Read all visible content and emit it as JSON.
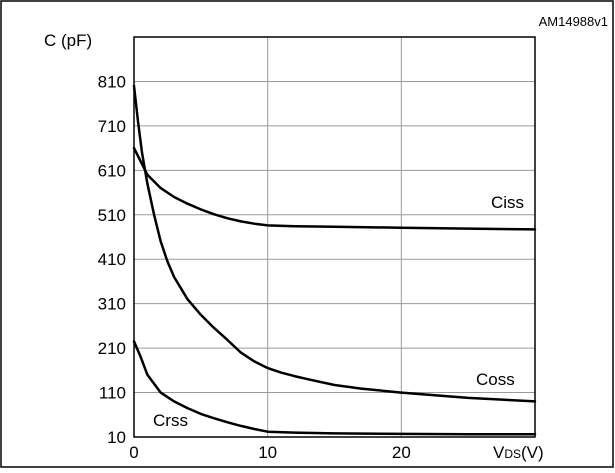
{
  "chart_data": {
    "type": "line",
    "figure_id": "AM14988v1",
    "title": "",
    "ylabel": "C (pF)",
    "xlabel": {
      "main": "V",
      "subscript": "DS",
      "suffix": "(V)"
    },
    "xlim": [
      0,
      30
    ],
    "ylim": [
      10,
      910
    ],
    "xticks": [
      0,
      10,
      20
    ],
    "yticks": [
      10,
      110,
      210,
      310,
      410,
      510,
      610,
      710,
      810
    ],
    "grid": true,
    "series": [
      {
        "name": "Ciss",
        "x": [
          0,
          0.5,
          1,
          2,
          3,
          4,
          5,
          6,
          7,
          8,
          9,
          10,
          12,
          15,
          20,
          25,
          30
        ],
        "y": [
          660,
          630,
          600,
          570,
          550,
          535,
          522,
          511,
          502,
          495,
          490,
          486,
          484,
          483,
          481,
          479,
          477
        ]
      },
      {
        "name": "Coss",
        "x": [
          0,
          0.3,
          0.6,
          1,
          1.5,
          2,
          2.5,
          3,
          4,
          5,
          6,
          7,
          8,
          9,
          10,
          11,
          12,
          13,
          15,
          17,
          20,
          25,
          30
        ],
        "y": [
          800,
          720,
          650,
          580,
          510,
          450,
          405,
          370,
          320,
          285,
          255,
          228,
          200,
          180,
          165,
          155,
          147,
          140,
          127,
          119,
          110,
          98,
          90
        ]
      },
      {
        "name": "Crss",
        "x": [
          0,
          0.5,
          1,
          2,
          3,
          4,
          5,
          6,
          7,
          8,
          9,
          10,
          12,
          15,
          20,
          25,
          30
        ],
        "y": [
          225,
          190,
          150,
          110,
          90,
          75,
          62,
          52,
          43,
          35,
          28,
          22,
          20,
          18,
          17,
          16,
          16
        ]
      }
    ]
  }
}
